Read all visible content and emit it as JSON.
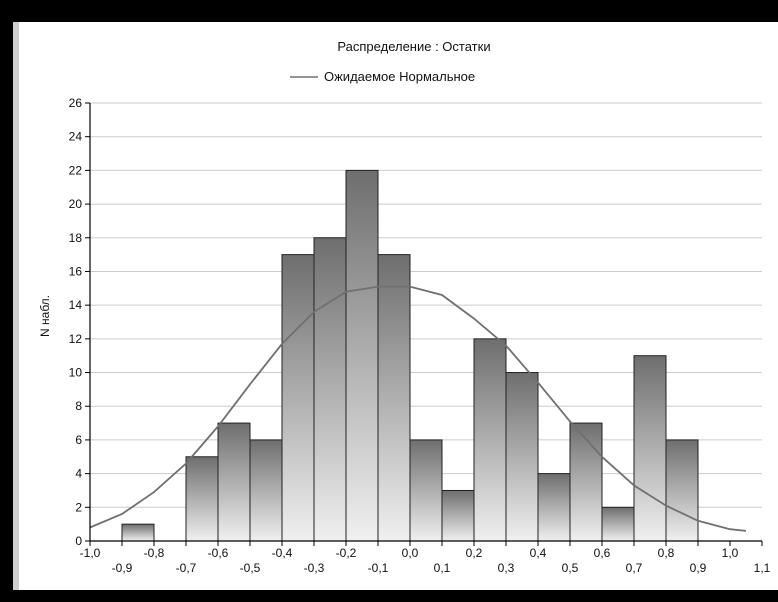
{
  "chart_data": {
    "type": "bar",
    "title": "Распределение : Остатки",
    "legend": {
      "entries": [
        "Ожидаемое Нормальное"
      ],
      "placement": "top-center"
    },
    "ylabel": "N набл.",
    "xlabel": "",
    "ylim": [
      0,
      26
    ],
    "xlim": [
      -1.0,
      1.1
    ],
    "y_ticks": [
      "0",
      "2",
      "4",
      "6",
      "8",
      "10",
      "12",
      "14",
      "16",
      "18",
      "20",
      "22",
      "24",
      "26"
    ],
    "x_ticks_upper": [
      "-1,0",
      "-0,8",
      "-0,6",
      "-0,4",
      "-0,2",
      "0,0",
      "0,2",
      "0,4",
      "0,6",
      "0,8",
      "1,0"
    ],
    "x_ticks_lower": [
      "-0,9",
      "-0,7",
      "-0,5",
      "-0,3",
      "-0,1",
      "0,1",
      "0,3",
      "0,5",
      "0,7",
      "0,9",
      "1,1"
    ],
    "grid": true,
    "bin_width": 0.1,
    "bins": [
      {
        "left": -0.9,
        "right": -0.8,
        "count": 1
      },
      {
        "left": -0.7,
        "right": -0.6,
        "count": 5
      },
      {
        "left": -0.6,
        "right": -0.5,
        "count": 7
      },
      {
        "left": -0.5,
        "right": -0.4,
        "count": 6
      },
      {
        "left": -0.4,
        "right": -0.3,
        "count": 17
      },
      {
        "left": -0.3,
        "right": -0.2,
        "count": 18
      },
      {
        "left": -0.2,
        "right": -0.1,
        "count": 22
      },
      {
        "left": -0.1,
        "right": 0.0,
        "count": 17
      },
      {
        "left": 0.0,
        "right": 0.1,
        "count": 6
      },
      {
        "left": 0.1,
        "right": 0.2,
        "count": 3
      },
      {
        "left": 0.2,
        "right": 0.3,
        "count": 12
      },
      {
        "left": 0.3,
        "right": 0.4,
        "count": 10
      },
      {
        "left": 0.4,
        "right": 0.5,
        "count": 4
      },
      {
        "left": 0.5,
        "right": 0.6,
        "count": 7
      },
      {
        "left": 0.6,
        "right": 0.7,
        "count": 2
      },
      {
        "left": 0.7,
        "right": 0.8,
        "count": 11
      },
      {
        "left": 0.8,
        "right": 0.9,
        "count": 6
      }
    ],
    "normal_curve": {
      "name": "Ожидаемое Нормальное",
      "x": [
        -1.0,
        -0.9,
        -0.8,
        -0.7,
        -0.6,
        -0.5,
        -0.4,
        -0.3,
        -0.2,
        -0.1,
        0.0,
        0.1,
        0.2,
        0.3,
        0.4,
        0.5,
        0.6,
        0.7,
        0.8,
        0.9,
        1.0,
        1.05
      ],
      "y": [
        0.8,
        1.6,
        2.9,
        4.6,
        6.8,
        9.3,
        11.7,
        13.6,
        14.8,
        15.1,
        15.1,
        14.6,
        13.2,
        11.6,
        9.4,
        7.1,
        5.0,
        3.3,
        2.1,
        1.2,
        0.7,
        0.6
      ]
    },
    "colors": {
      "bar_top": "#6e6e6e",
      "bar_bottom": "#f0f0f0",
      "curve": "#707070",
      "grid": "#cccccc"
    }
  }
}
